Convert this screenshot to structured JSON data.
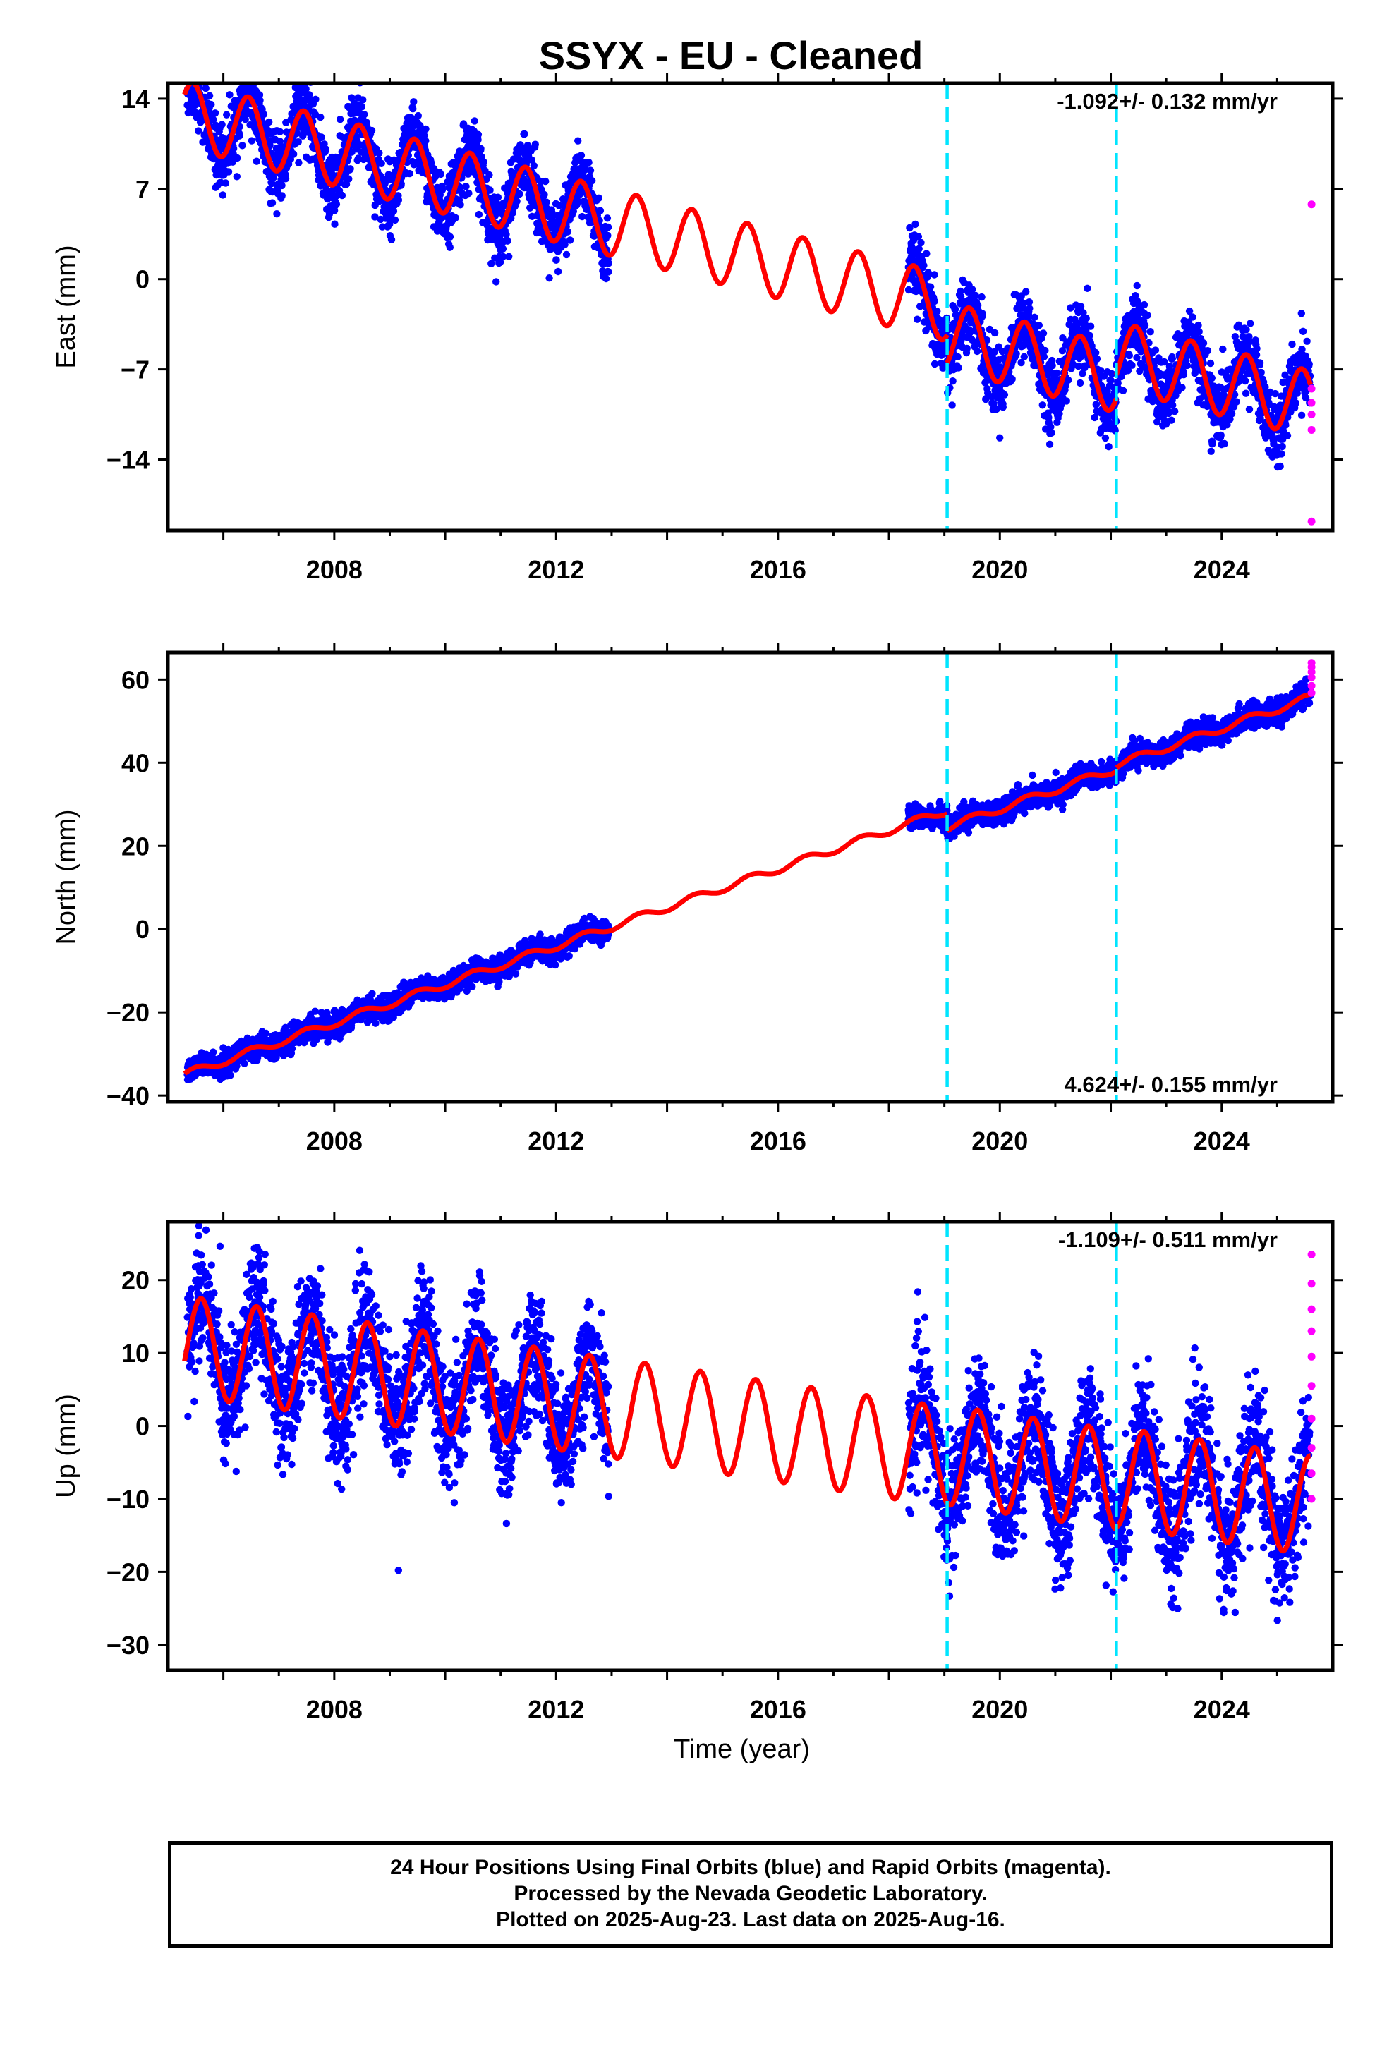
{
  "title": "SSYX  - EU - Cleaned",
  "colors": {
    "final_orbits": "#0000ff",
    "rapid_orbits": "#ff00ff",
    "model": "#ff0000",
    "breaks": "#00e5ff",
    "axes": "#000000"
  },
  "x_axis": {
    "label": "Time (year)",
    "ticks": [
      2008,
      2012,
      2016,
      2020,
      2024
    ],
    "range": [
      2005.0,
      2026.0
    ]
  },
  "breaks": [
    2019.05,
    2022.1
  ],
  "footer": {
    "line1": "24 Hour Positions Using Final Orbits (blue) and Rapid Orbits (magenta).",
    "line2": "Processed by the Nevada Geodetic Laboratory.",
    "line3": "Plotted on 2025-Aug-23. Last data on 2025-Aug-16."
  },
  "chart_data": [
    {
      "type": "scatter",
      "component": "East",
      "ylabel": "East (mm)",
      "yticks": [
        14,
        7,
        0,
        -7,
        -14
      ],
      "ylim": [
        -19.5,
        15.2
      ],
      "rate_text": "-1.092+/- 0.132 mm/yr",
      "rate_position": "top-right",
      "data_spans": [
        [
          2005.35,
          2012.95
        ],
        [
          2018.35,
          2025.6
        ]
      ],
      "model": {
        "segments": [
          {
            "from": 2005.3,
            "to": 2019.05,
            "value_at_start": 12.8,
            "slope_mm_per_yr": -1.092,
            "offset_mm": -0.8
          },
          {
            "from": 2019.05,
            "to": 2022.1,
            "value_at_start": -4.4,
            "slope_mm_per_yr": -1.092,
            "offset_mm": -0.5
          },
          {
            "from": 2022.1,
            "to": 2025.6,
            "value_at_start": -5.9,
            "slope_mm_per_yr": -1.092,
            "offset_mm": 0.0
          }
        ],
        "seasonal_amplitude_mm": 2.6,
        "seasonal_phase_peak_fraction": 0.45
      },
      "scatter_sigma_mm": 1.3,
      "rapid_points": [
        [
          2025.62,
          5.8
        ],
        [
          2025.62,
          -8.5
        ],
        [
          2025.62,
          -9.6
        ],
        [
          2025.62,
          -10.5
        ],
        [
          2025.62,
          -11.7
        ],
        [
          2025.62,
          -18.8
        ]
      ]
    },
    {
      "type": "scatter",
      "component": "North",
      "ylabel": "North (mm)",
      "yticks": [
        60,
        40,
        20,
        0,
        -20,
        -40
      ],
      "ylim": [
        -41.5,
        66.5
      ],
      "rate_text": "4.624+/- 0.155 mm/yr",
      "rate_position": "bottom-right",
      "data_spans": [
        [
          2005.35,
          2012.95
        ],
        [
          2018.35,
          2025.6
        ]
      ],
      "model": {
        "segments": [
          {
            "from": 2005.3,
            "to": 2019.05,
            "value_at_start": -35.0,
            "slope_mm_per_yr": 4.624,
            "offset_mm": 0.0
          },
          {
            "from": 2019.05,
            "to": 2022.1,
            "value_at_start": 24.5,
            "slope_mm_per_yr": 4.624,
            "offset_mm": 0.0
          },
          {
            "from": 2022.1,
            "to": 2025.6,
            "value_at_start": 39.5,
            "slope_mm_per_yr": 4.624,
            "offset_mm": 0.0
          }
        ],
        "seasonal_amplitude_mm": 0.9,
        "seasonal_phase_peak_fraction": 0.5
      },
      "scatter_sigma_mm": 1.4,
      "rapid_points": [
        [
          2025.62,
          56.8
        ],
        [
          2025.62,
          58.5
        ],
        [
          2025.62,
          60.5
        ],
        [
          2025.62,
          61.8
        ],
        [
          2025.62,
          63.0
        ],
        [
          2025.62,
          64.0
        ]
      ]
    },
    {
      "type": "scatter",
      "component": "Up",
      "ylabel": "Up (mm)",
      "yticks": [
        20,
        10,
        0,
        -10,
        -20,
        -30
      ],
      "ylim": [
        -33.5,
        28.0
      ],
      "rate_text": "-1.109+/- 0.511 mm/yr",
      "rate_position": "top-right",
      "data_spans": [
        [
          2005.35,
          2012.95
        ],
        [
          2018.35,
          2025.6
        ]
      ],
      "model": {
        "segments": [
          {
            "from": 2005.3,
            "to": 2019.05,
            "value_at_start": 11.0,
            "slope_mm_per_yr": -1.109,
            "offset_mm": -0.5
          },
          {
            "from": 2019.05,
            "to": 2022.1,
            "value_at_start": -4.0,
            "slope_mm_per_yr": -1.109,
            "offset_mm": 0.0
          },
          {
            "from": 2022.1,
            "to": 2025.6,
            "value_at_start": -7.0,
            "slope_mm_per_yr": -1.109,
            "offset_mm": 0.0
          }
        ],
        "seasonal_amplitude_mm": 6.8,
        "seasonal_phase_peak_fraction": 0.6
      },
      "scatter_sigma_mm": 4.2,
      "rapid_points": [
        [
          2025.62,
          23.5
        ],
        [
          2025.62,
          19.5
        ],
        [
          2025.62,
          16.0
        ],
        [
          2025.62,
          13.0
        ],
        [
          2025.62,
          9.5
        ],
        [
          2025.62,
          5.5
        ],
        [
          2025.62,
          1.0
        ],
        [
          2025.62,
          -3.0
        ],
        [
          2025.62,
          -6.5
        ],
        [
          2025.62,
          -10.0
        ]
      ]
    }
  ]
}
